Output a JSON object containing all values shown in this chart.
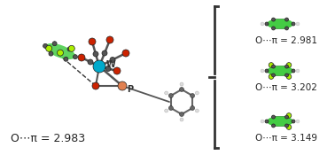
{
  "background_color": "#ffffff",
  "main_label": "O⋯π = 2.983",
  "right_labels": [
    "O⋯π = 2.981",
    "O⋯π = 3.202",
    "O⋯π = 3.149"
  ],
  "atom_W_color": "#00aacc",
  "atom_P_color": "#e08050",
  "atom_O_color": "#cc2200",
  "atom_C_color": "#555555",
  "atom_H_color": "#dddddd",
  "atom_F_color": "#aaee00",
  "ring_green": "#44cc44",
  "label_fontsize": 9,
  "small_label_fontsize": 7.5,
  "bracket_color": "#333333",
  "dashed_color": "#333333"
}
